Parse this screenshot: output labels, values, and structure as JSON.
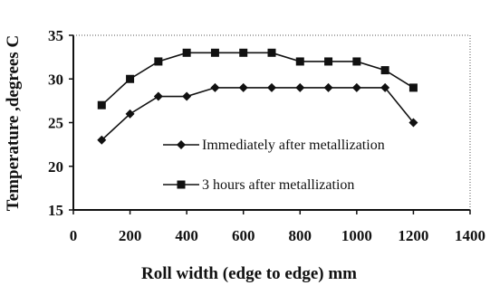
{
  "chart_data": {
    "type": "line",
    "xlabel": "Roll width (edge to edge) mm",
    "ylabel": "Temperature ,degrees C",
    "xlim": [
      0,
      1400
    ],
    "ylim": [
      15,
      35
    ],
    "xticks": [
      0,
      200,
      400,
      600,
      800,
      1000,
      1200,
      1400
    ],
    "yticks": [
      15,
      20,
      25,
      30,
      35
    ],
    "grid": false,
    "legend_position": "center",
    "x": [
      100,
      200,
      300,
      400,
      500,
      600,
      700,
      800,
      900,
      1000,
      1100,
      1200
    ],
    "series": [
      {
        "name": "Immediately after metallization",
        "marker": "diamond",
        "color": "#111111",
        "values": [
          23,
          26,
          28,
          28,
          29,
          29,
          29,
          29,
          29,
          29,
          29,
          25
        ]
      },
      {
        "name": "3 hours after metallization",
        "marker": "square",
        "color": "#111111",
        "values": [
          27,
          30,
          32,
          33,
          33,
          33,
          33,
          32,
          32,
          32,
          31,
          29
        ]
      }
    ]
  }
}
